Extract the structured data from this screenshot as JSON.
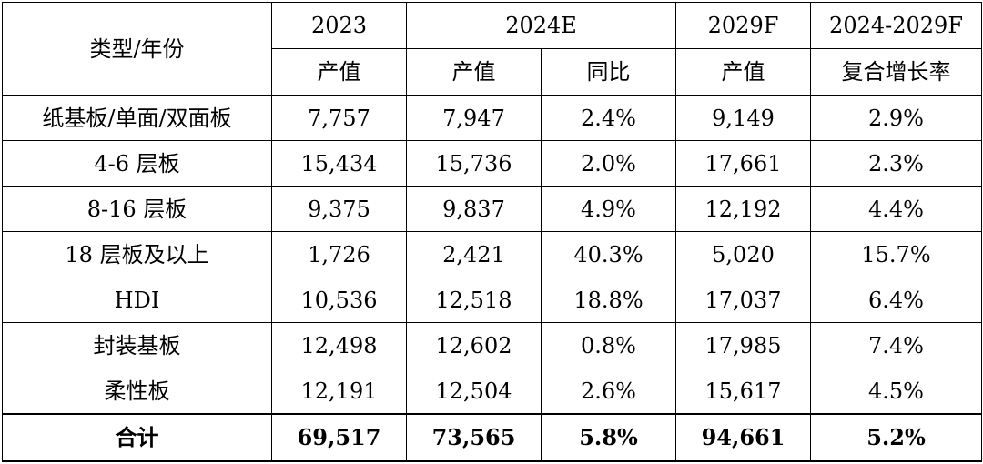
{
  "table": {
    "corner_label": "类型/年份",
    "year_headers": [
      "2023",
      "2024E",
      "2029F",
      "2024-2029F"
    ],
    "sub_headers": [
      "产值",
      "产值",
      "同比",
      "产值",
      "复合增长率"
    ],
    "rows": [
      {
        "label": "纸基板/单面/双面板",
        "v2023": "7,757",
        "v2024": "7,947",
        "yoy": "2.4%",
        "v2029": "9,149",
        "cagr": "2.9%"
      },
      {
        "label": "4-6 层板",
        "v2023": "15,434",
        "v2024": "15,736",
        "yoy": "2.0%",
        "v2029": "17,661",
        "cagr": "2.3%"
      },
      {
        "label": "8-16 层板",
        "v2023": "9,375",
        "v2024": "9,837",
        "yoy": "4.9%",
        "v2029": "12,192",
        "cagr": "4.4%"
      },
      {
        "label": "18 层板及以上",
        "v2023": "1,726",
        "v2024": "2,421",
        "yoy": "40.3%",
        "v2029": "5,020",
        "cagr": "15.7%"
      },
      {
        "label": "HDI",
        "v2023": "10,536",
        "v2024": "12,518",
        "yoy": "18.8%",
        "v2029": "17,037",
        "cagr": "6.4%"
      },
      {
        "label": "封装基板",
        "v2023": "12,498",
        "v2024": "12,602",
        "yoy": "0.8%",
        "v2029": "17,985",
        "cagr": "7.4%"
      },
      {
        "label": "柔性板",
        "v2023": "12,191",
        "v2024": "12,504",
        "yoy": "2.6%",
        "v2029": "15,617",
        "cagr": "4.5%"
      }
    ],
    "total": {
      "label": "合计",
      "v2023": "69,517",
      "v2024": "73,565",
      "yoy": "5.8%",
      "v2029": "94,661",
      "cagr": "5.2%"
    }
  }
}
